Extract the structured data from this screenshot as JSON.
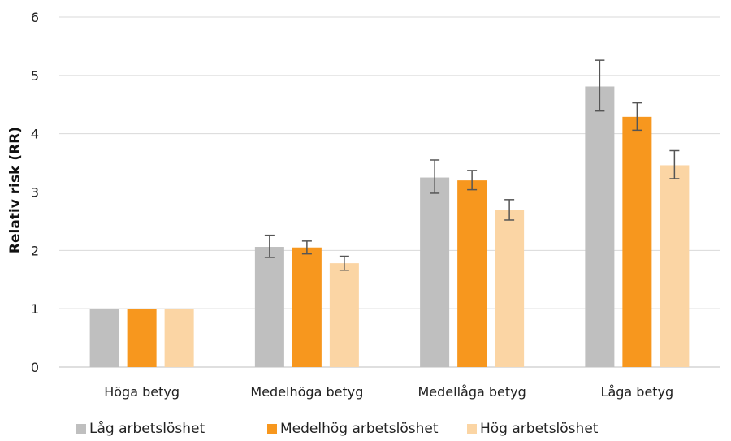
{
  "chart_data": {
    "type": "bar",
    "ylabel": "Relativ risk (RR)",
    "ylim": [
      0,
      6
    ],
    "yticks": [
      0,
      1,
      2,
      3,
      4,
      5,
      6
    ],
    "categories": [
      "Höga betyg",
      "Medelhöga betyg",
      "Medellåga betyg",
      "Låga betyg"
    ],
    "series": [
      {
        "name": "Låg arbetslöshet",
        "color": "#bfbfbf",
        "values": [
          1.0,
          2.06,
          3.25,
          4.81
        ],
        "err_low": [
          null,
          1.88,
          2.98,
          4.39
        ],
        "err_high": [
          null,
          2.26,
          3.55,
          5.26
        ]
      },
      {
        "name": "Medelhög arbetslöshet",
        "color": "#f7971e",
        "values": [
          1.0,
          2.05,
          3.2,
          4.29
        ],
        "err_low": [
          null,
          1.94,
          3.04,
          4.06
        ],
        "err_high": [
          null,
          2.16,
          3.37,
          4.53
        ]
      },
      {
        "name": "Hög arbetslöshet",
        "color": "#fbd5a4",
        "values": [
          1.0,
          1.78,
          2.69,
          3.46
        ],
        "err_low": [
          null,
          1.66,
          2.52,
          3.23
        ],
        "err_high": [
          null,
          1.9,
          2.87,
          3.71
        ]
      }
    ],
    "grid": true,
    "legend_position": "bottom",
    "error_bar_color": "#555555"
  }
}
